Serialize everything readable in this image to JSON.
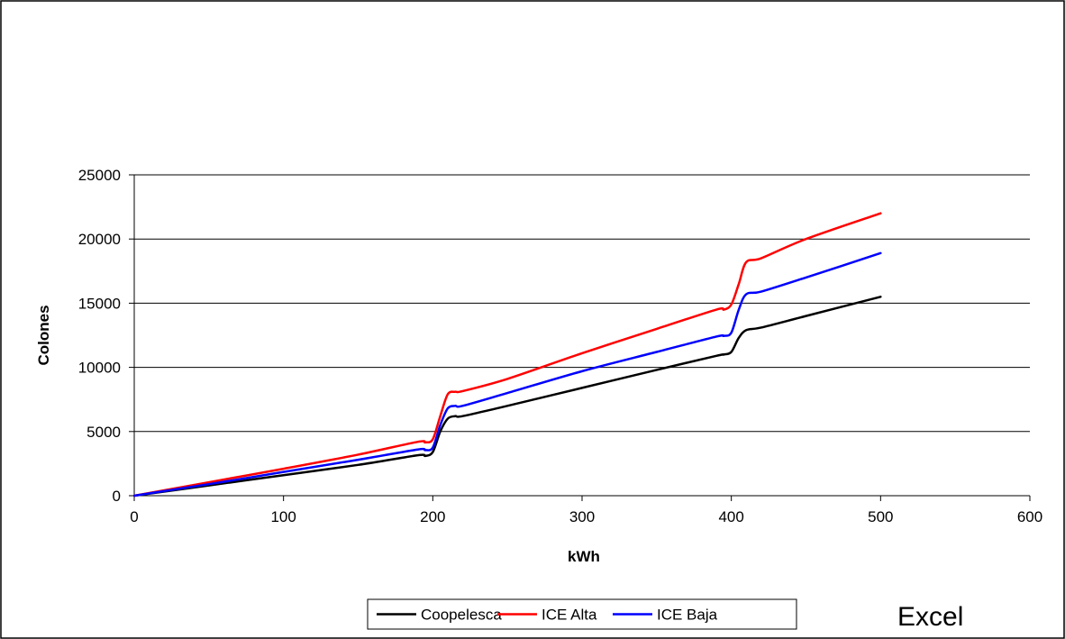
{
  "chart_data": {
    "type": "line",
    "title": "",
    "xlabel": "kWh",
    "ylabel": "Colones",
    "xlim": [
      0,
      600
    ],
    "ylim": [
      0,
      25000
    ],
    "x_ticks": [
      "0",
      "100",
      "200",
      "300",
      "400",
      "500",
      "600"
    ],
    "y_ticks": [
      "0",
      "5000",
      "10000",
      "15000",
      "20000",
      "25000"
    ],
    "grid": "horizontal major gridlines",
    "legend_position": "bottom",
    "annotation": "Excel",
    "series": [
      {
        "name": "Coopelesca",
        "color": "#000000",
        "points": [
          [
            0,
            0
          ],
          [
            50,
            800
          ],
          [
            100,
            1600
          ],
          [
            150,
            2400
          ],
          [
            190,
            3150
          ],
          [
            195,
            3100
          ],
          [
            200,
            3400
          ],
          [
            205,
            5000
          ],
          [
            210,
            6000
          ],
          [
            215,
            6200
          ],
          [
            220,
            6200
          ],
          [
            250,
            7000
          ],
          [
            300,
            8400
          ],
          [
            350,
            9800
          ],
          [
            390,
            10900
          ],
          [
            395,
            11000
          ],
          [
            400,
            11200
          ],
          [
            405,
            12300
          ],
          [
            410,
            12900
          ],
          [
            420,
            13100
          ],
          [
            450,
            14000
          ],
          [
            500,
            15500
          ]
        ]
      },
      {
        "name": "ICE Alta",
        "color": "#ff0000",
        "points": [
          [
            0,
            0
          ],
          [
            50,
            1050
          ],
          [
            100,
            2100
          ],
          [
            150,
            3200
          ],
          [
            190,
            4200
          ],
          [
            195,
            4150
          ],
          [
            200,
            4400
          ],
          [
            205,
            6200
          ],
          [
            210,
            7900
          ],
          [
            215,
            8100
          ],
          [
            220,
            8150
          ],
          [
            250,
            9100
          ],
          [
            300,
            11100
          ],
          [
            350,
            13000
          ],
          [
            390,
            14500
          ],
          [
            395,
            14500
          ],
          [
            400,
            14900
          ],
          [
            405,
            16500
          ],
          [
            410,
            18200
          ],
          [
            420,
            18500
          ],
          [
            450,
            20000
          ],
          [
            500,
            22000
          ]
        ]
      },
      {
        "name": "ICE Baja",
        "color": "#0000ff",
        "points": [
          [
            0,
            0
          ],
          [
            50,
            900
          ],
          [
            100,
            1850
          ],
          [
            150,
            2800
          ],
          [
            190,
            3600
          ],
          [
            195,
            3550
          ],
          [
            200,
            3750
          ],
          [
            205,
            5500
          ],
          [
            210,
            6800
          ],
          [
            215,
            7000
          ],
          [
            220,
            7000
          ],
          [
            250,
            8000
          ],
          [
            300,
            9700
          ],
          [
            350,
            11200
          ],
          [
            390,
            12400
          ],
          [
            395,
            12450
          ],
          [
            400,
            12700
          ],
          [
            405,
            14500
          ],
          [
            410,
            15700
          ],
          [
            420,
            15900
          ],
          [
            450,
            17000
          ],
          [
            500,
            18900
          ]
        ]
      }
    ]
  }
}
